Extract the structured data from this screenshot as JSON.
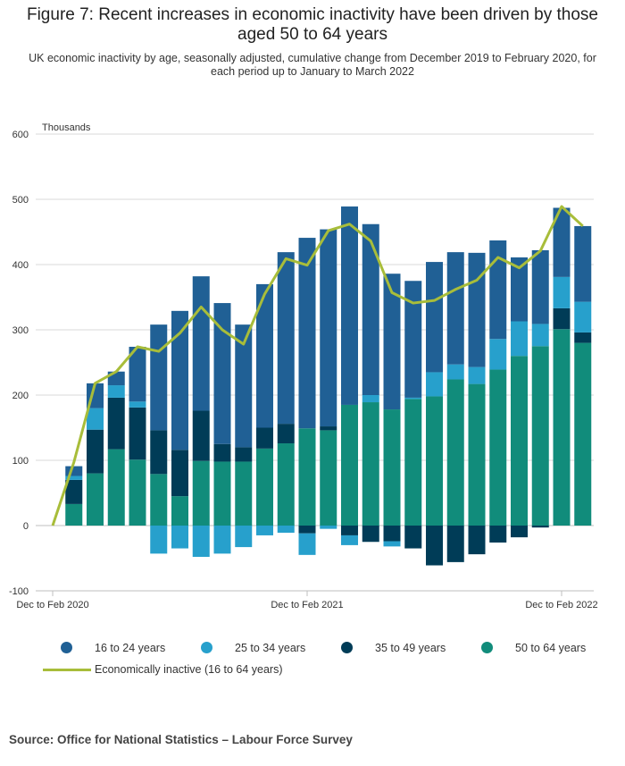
{
  "figure": {
    "title_line1": "Figure 7: Recent increases in economic inactivity have been driven by those",
    "title_line2": "aged 50 to 64 years",
    "subtitle_line1": "UK economic inactivity by age, seasonally adjusted, cumulative change from December 2019 to February 2020, for",
    "subtitle_line2": "each period up to January to March 2022",
    "source": "Source: Office for National Statistics – Labour Force Survey"
  },
  "colors": {
    "age_16_24": "#206095",
    "age_25_34": "#27a0cc",
    "age_35_49": "#003c57",
    "age_50_64": "#118c7b",
    "inactive_line": "#a8bd3a",
    "gridline": "#d9d9d9",
    "axis": "#bfbfbf"
  },
  "chart_data": {
    "type": "bar",
    "stacked": true,
    "ylabel": "Thousands",
    "ylim": [
      -100,
      600
    ],
    "yticks": [
      -100,
      0,
      100,
      200,
      300,
      400,
      500,
      600
    ],
    "grid": true,
    "legend_position": "bottom",
    "xtick_labels": [
      "Dec to Feb 2020",
      "Dec to Feb 2021",
      "Dec to Feb 2022"
    ],
    "xtick_indices": [
      0,
      12,
      24
    ],
    "n_periods": 26,
    "series": [
      {
        "name": "50 to 64 years",
        "key": "age_50_64",
        "values": [
          0,
          33,
          80,
          117,
          101,
          79,
          45,
          99,
          98,
          98,
          118,
          126,
          149,
          146,
          185,
          189,
          178,
          194,
          198,
          224,
          217,
          239,
          260,
          275,
          301,
          280
        ]
      },
      {
        "name": "35 to 49 years",
        "key": "age_35_49",
        "values": [
          0,
          37,
          67,
          79,
          80,
          67,
          71,
          77,
          27,
          22,
          32,
          30,
          -12,
          6,
          -15,
          -25,
          -24,
          -35,
          -61,
          -56,
          -44,
          -26,
          -18,
          -3,
          32,
          16
        ]
      },
      {
        "name": "25 to 34 years",
        "key": "age_25_34",
        "values": [
          0,
          6,
          33,
          19,
          9,
          -43,
          -35,
          -48,
          -43,
          -33,
          -15,
          -11,
          -33,
          -5,
          -15,
          11,
          -8,
          2,
          37,
          23,
          26,
          47,
          53,
          34,
          48,
          47
        ]
      },
      {
        "name": "16 to 24 years",
        "key": "age_16_24",
        "values": [
          0,
          15,
          38,
          21,
          84,
          162,
          213,
          206,
          216,
          188,
          220,
          263,
          292,
          302,
          304,
          262,
          208,
          179,
          169,
          172,
          175,
          151,
          98,
          113,
          106,
          116
        ]
      }
    ],
    "line": {
      "name": "Economically inactive (16 to 64 years)",
      "key": "inactive_line",
      "values": [
        0,
        97,
        218,
        236,
        274,
        267,
        295,
        335,
        300,
        278,
        355,
        409,
        399,
        452,
        462,
        436,
        357,
        341,
        345,
        362,
        376,
        411,
        395,
        421,
        489,
        459
      ]
    }
  },
  "legend": {
    "items": [
      {
        "label": "16 to 24 years",
        "key": "age_16_24"
      },
      {
        "label": "25 to 34 years",
        "key": "age_25_34"
      },
      {
        "label": "35 to 49 years",
        "key": "age_35_49"
      },
      {
        "label": "50 to 64 years",
        "key": "age_50_64"
      }
    ],
    "line_label": "Economically inactive (16 to 64 years)"
  }
}
